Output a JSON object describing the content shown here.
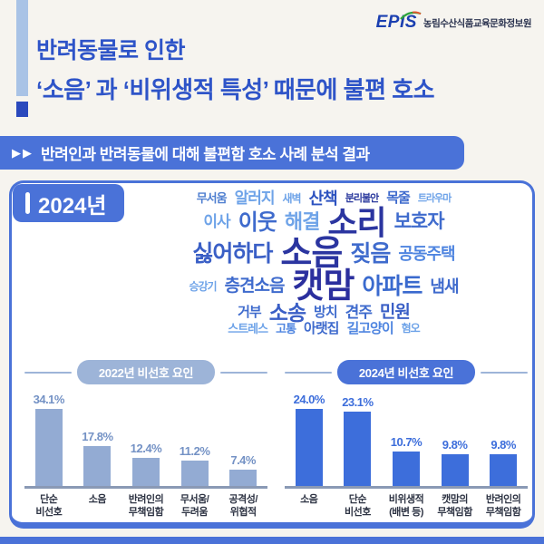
{
  "logo": {
    "epis": "EPIS",
    "org": "농림수산식품교육문화정보원"
  },
  "header": {
    "title_line1": "반려동물로 인한",
    "title_line2": "‘소음’ 과 ‘비위생적 특성’ 때문에 불편 호소",
    "banner_arrows": "▶▶",
    "banner_text": "반려인과 반려동물에 대해 불편함 호소 사례 분석 결과"
  },
  "card": {
    "year_label": "2024년",
    "wordcloud_rows": [
      [
        {
          "t": "무서움",
          "s": 13,
          "c": "#4f7fd0"
        },
        {
          "t": "알러지",
          "s": 17,
          "c": "#6ea3e8"
        },
        {
          "t": "새벽",
          "s": 12,
          "c": "#6ea3e8"
        },
        {
          "t": "산책",
          "s": 18,
          "c": "#2d53c0"
        },
        {
          "t": "분리불안",
          "s": 11,
          "c": "#2b3a9e"
        },
        {
          "t": "목줄",
          "s": 15,
          "c": "#3f6bcd"
        },
        {
          "t": "트라우마",
          "s": 11,
          "c": "#6ea3e8"
        }
      ],
      [
        {
          "t": "이사",
          "s": 17,
          "c": "#6ea3e8"
        },
        {
          "t": "이웃",
          "s": 24,
          "c": "#3f6bcd"
        },
        {
          "t": "해결",
          "s": 22,
          "c": "#6ea3e8"
        },
        {
          "t": "소리",
          "s": 36,
          "c": "#2b35a0"
        },
        {
          "t": "보호자",
          "s": 21,
          "c": "#3f6bcd"
        }
      ],
      [
        {
          "t": "싫어하다",
          "s": 25,
          "c": "#3a5fc6"
        },
        {
          "t": "소음",
          "s": 38,
          "c": "#2b35a0"
        },
        {
          "t": "짖음",
          "s": 25,
          "c": "#3f6bcd"
        },
        {
          "t": "공동주택",
          "s": 18,
          "c": "#4f85e0"
        }
      ],
      [
        {
          "t": "승강기",
          "s": 12,
          "c": "#6ea3e8"
        },
        {
          "t": "층견소음",
          "s": 19,
          "c": "#3f6bcd"
        },
        {
          "t": "캣맘",
          "s": 38,
          "c": "#2b2f9e"
        },
        {
          "t": "아파트",
          "s": 25,
          "c": "#3a6ace"
        },
        {
          "t": "냄새",
          "s": 18,
          "c": "#3f6bcd"
        }
      ],
      [
        {
          "t": "거부",
          "s": 15,
          "c": "#3f6bcd"
        },
        {
          "t": "소송",
          "s": 23,
          "c": "#3a5fc6"
        },
        {
          "t": "방치",
          "s": 15,
          "c": "#3f6bcd"
        },
        {
          "t": "견주",
          "s": 17,
          "c": "#3f6bcd"
        },
        {
          "t": "민원",
          "s": 19,
          "c": "#3a5fc6"
        }
      ],
      [
        {
          "t": "스트레스",
          "s": 13,
          "c": "#6ea3e8"
        },
        {
          "t": "고통",
          "s": 13,
          "c": "#4f85e0"
        },
        {
          "t": "아랫집",
          "s": 15,
          "c": "#3f6bcd"
        },
        {
          "t": "길고양이",
          "s": 15,
          "c": "#4f85e0"
        },
        {
          "t": "혐오",
          "s": 12,
          "c": "#6ea3e8"
        }
      ]
    ]
  },
  "chart_data": [
    {
      "type": "bar",
      "title": "2022년 비선호 요인",
      "unit": "%",
      "categories": [
        "단순\n비선호",
        "소음",
        "반려인의\n무책임함",
        "무서움/\n두려움",
        "공격성/\n위협적"
      ],
      "values": [
        34.1,
        17.8,
        12.4,
        11.2,
        7.4
      ],
      "ylim": [
        0,
        38
      ],
      "legend": "none",
      "grid": false,
      "bar_color": "#93abd3",
      "value_color": "#7492c5",
      "pill_color": "#9db4d8"
    },
    {
      "type": "bar",
      "title": "2024년 비선호 요인",
      "unit": "%",
      "categories": [
        "소음",
        "단순\n비선호",
        "비위생적\n(배변 등)",
        "캣맘의\n무책임함",
        "반려인의\n무책임함"
      ],
      "values": [
        24.0,
        23.1,
        10.7,
        9.8,
        9.8
      ],
      "ylim": [
        0,
        27
      ],
      "legend": "none",
      "grid": false,
      "bar_color": "#3d6edb",
      "value_color": "#3d6edb",
      "pill_color": "#4a72d8"
    }
  ],
  "colors": {
    "accent_blue": "#4a72d8",
    "title_blue": "#2e54c8",
    "accent_light": "#a9c3e6",
    "axis_gray": "#8a99b5",
    "background": "#f6f4ef"
  }
}
